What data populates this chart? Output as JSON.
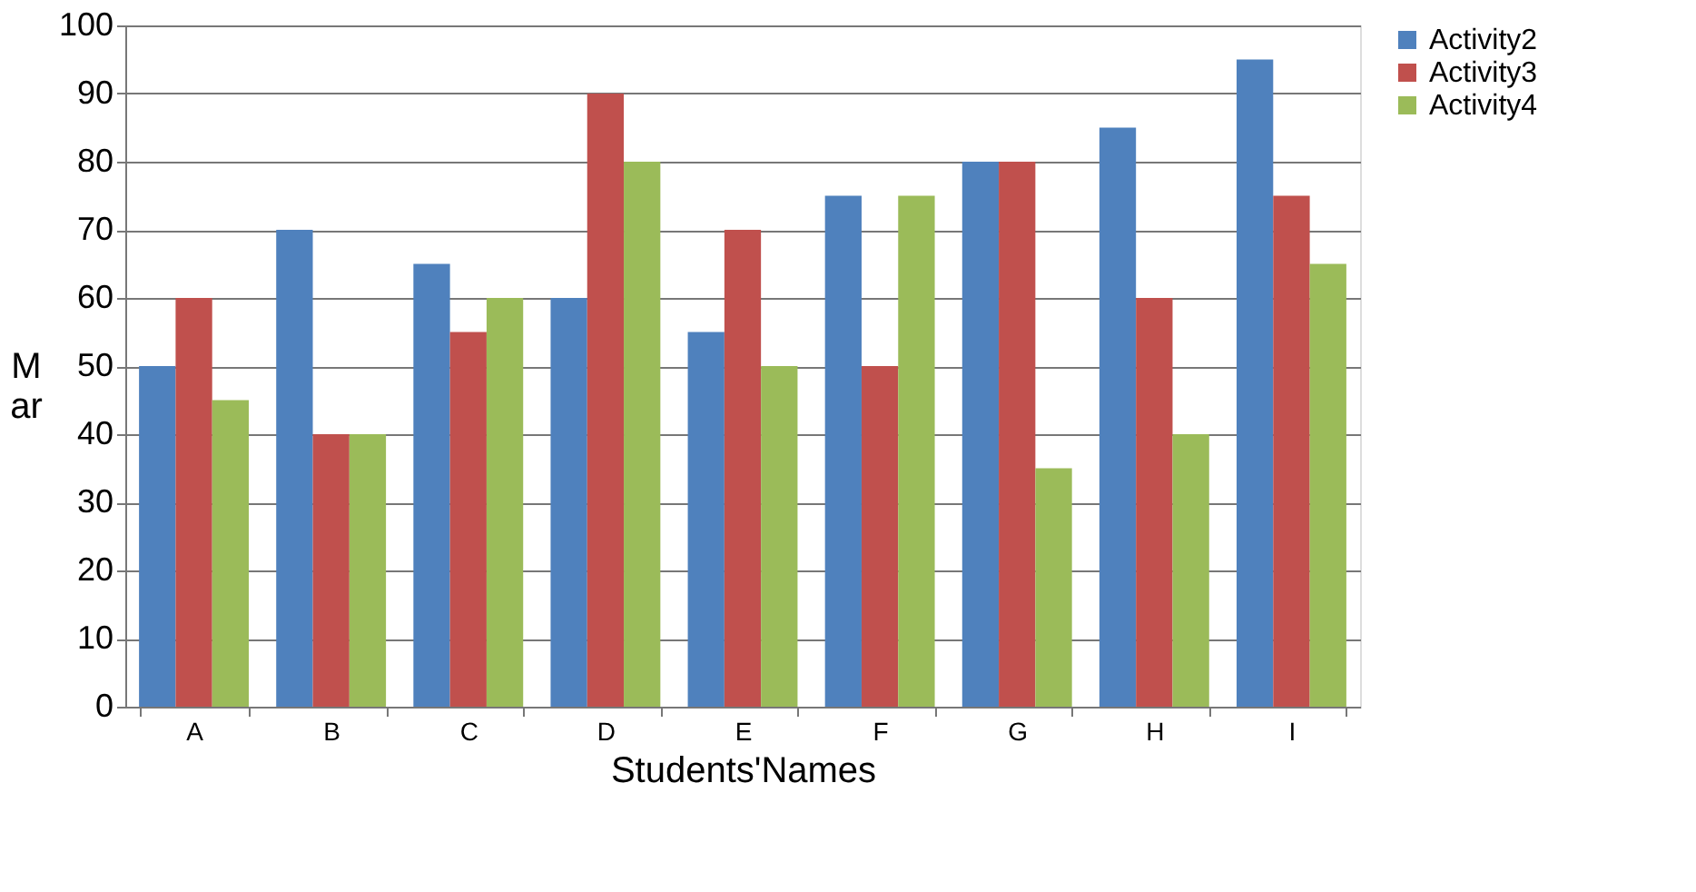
{
  "chart_data": {
    "type": "bar",
    "xlabel": "Students'Names",
    "ylabel": "M\nar",
    "categories": [
      "A",
      "B",
      "C",
      "D",
      "E",
      "F",
      "G",
      "H",
      "I"
    ],
    "series": [
      {
        "name": "Activity2",
        "color": "#4f81bd",
        "values": [
          50,
          70,
          65,
          60,
          55,
          75,
          80,
          85,
          95
        ]
      },
      {
        "name": "Activity3",
        "color": "#c0504d",
        "values": [
          60,
          40,
          55,
          90,
          70,
          50,
          80,
          60,
          75
        ]
      },
      {
        "name": "Activity4",
        "color": "#9bbb59",
        "values": [
          45,
          40,
          60,
          80,
          50,
          75,
          35,
          40,
          65
        ]
      }
    ],
    "ylim": [
      0,
      100
    ],
    "yticks": [
      0,
      10,
      20,
      30,
      40,
      50,
      60,
      70,
      80,
      90,
      100
    ],
    "grid": "y",
    "legend": "right"
  }
}
